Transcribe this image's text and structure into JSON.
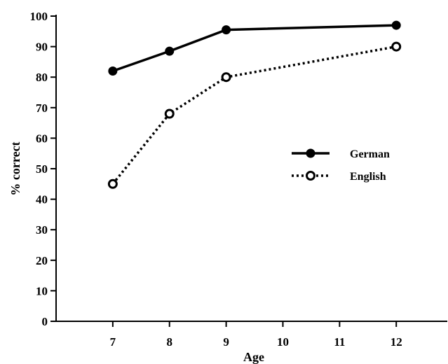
{
  "chart_data": {
    "type": "line",
    "title": "",
    "xlabel": "Age",
    "ylabel": "% correct",
    "x": [
      7,
      8,
      9,
      10,
      11,
      12
    ],
    "xlim": [
      6,
      12.9
    ],
    "ylim": [
      0,
      100
    ],
    "yticks": [
      0,
      10,
      20,
      30,
      40,
      50,
      60,
      70,
      80,
      90,
      100
    ],
    "xticks": [
      7,
      8,
      9,
      10,
      11,
      12
    ],
    "grid": false,
    "legend": "right",
    "series": [
      {
        "name": "German",
        "marker": "filled-circle",
        "line_style": "solid",
        "color": "#000000",
        "points": [
          {
            "x": 7,
            "y": 82
          },
          {
            "x": 8,
            "y": 88.5
          },
          {
            "x": 9,
            "y": 95.5
          },
          {
            "x": 12,
            "y": 97
          }
        ]
      },
      {
        "name": "English",
        "marker": "open-circle",
        "line_style": "dotted",
        "color": "#000000",
        "points": [
          {
            "x": 7,
            "y": 45
          },
          {
            "x": 8,
            "y": 68
          },
          {
            "x": 9,
            "y": 80
          },
          {
            "x": 12,
            "y": 90
          }
        ]
      }
    ]
  }
}
